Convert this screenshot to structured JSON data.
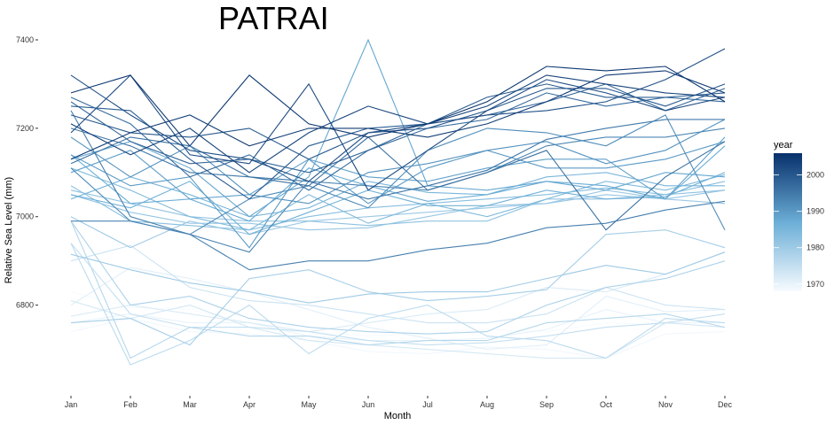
{
  "chart_data": {
    "type": "line",
    "title": "PATRAI",
    "xlabel": "Month",
    "ylabel": "Relative Sea Level (mm)",
    "categories": [
      "Jan",
      "Feb",
      "Mar",
      "Apr",
      "May",
      "Jun",
      "Jul",
      "Aug",
      "Sep",
      "Oct",
      "Nov",
      "Dec"
    ],
    "yticks": [
      6800,
      7000,
      7200,
      7400
    ],
    "ylim": [
      6625,
      7410
    ],
    "grid": false,
    "legend": {
      "title": "year",
      "position": "right",
      "ticks": [
        1970,
        1980,
        1990,
        2000
      ],
      "range": [
        1968,
        2006
      ],
      "color_low": "#f7fbff",
      "color_high": "#08306b"
    },
    "series": [
      {
        "year": 1968,
        "values": [
          6830,
          6795,
          6790,
          6760,
          6740,
          6730,
          6735,
          6745,
          6740,
          6760,
          6755,
          6800
        ]
      },
      {
        "year": 1969,
        "values": [
          6740,
          6770,
          6740,
          6735,
          6720,
          6695,
          6690,
          6705,
          6700,
          6680,
          6735,
          6740
        ]
      },
      {
        "year": 1970,
        "values": [
          6760,
          6780,
          6760,
          6760,
          6730,
          6720,
          6720,
          6725,
          6745,
          6790,
          6760,
          6760
        ]
      },
      {
        "year": 1971,
        "values": [
          6800,
          6885,
          6860,
          6830,
          6790,
          6750,
          6725,
          6700,
          6710,
          6820,
          6785,
          6790
        ]
      },
      {
        "year": 1972,
        "values": [
          6775,
          6800,
          6780,
          6760,
          6740,
          6760,
          6780,
          6790,
          6840,
          6830,
          6870,
          6920
        ]
      },
      {
        "year": 1973,
        "values": [
          6810,
          6770,
          6800,
          6750,
          6720,
          6710,
          6700,
          6690,
          6680,
          6680,
          6760,
          6750
        ]
      },
      {
        "year": 1974,
        "values": [
          6900,
          6935,
          6840,
          6810,
          6800,
          6780,
          6760,
          6760,
          6780,
          6840,
          6800,
          6790
        ]
      },
      {
        "year": 1975,
        "values": [
          6940,
          6780,
          6750,
          6750,
          6740,
          6720,
          6710,
          6715,
          6730,
          6750,
          6760,
          6780
        ]
      },
      {
        "year": 1976,
        "values": [
          6940,
          6665,
          6720,
          6800,
          6690,
          6770,
          6800,
          6730,
          6720,
          6680,
          6770,
          6760
        ]
      },
      {
        "year": 1977,
        "values": [
          6990,
          6680,
          6750,
          6730,
          6730,
          6710,
          6720,
          6720,
          6760,
          6770,
          6780,
          6750
        ]
      },
      {
        "year": 1978,
        "values": [
          6990,
          6800,
          6820,
          6770,
          6750,
          6740,
          6735,
          6740,
          6800,
          6840,
          6860,
          6900
        ]
      },
      {
        "year": 1979,
        "values": [
          6760,
          6770,
          6710,
          6860,
          6880,
          6830,
          6810,
          6820,
          6835,
          6960,
          6970,
          6930
        ]
      },
      {
        "year": 1980,
        "values": [
          6915,
          6880,
          6850,
          6830,
          6805,
          6825,
          6830,
          6830,
          6860,
          6890,
          6870,
          6920
        ]
      },
      {
        "year": 1980.5,
        "values": [
          7000,
          6930,
          6990,
          6960,
          6990,
          7000,
          7010,
          7020,
          7030,
          7060,
          7040,
          7030
        ]
      },
      {
        "year": 1981,
        "values": [
          7050,
          7010,
          6985,
          6985,
          6970,
          6975,
          7000,
          7025,
          7030,
          7050,
          7040,
          7060
        ]
      },
      {
        "year": 1982,
        "values": [
          7060,
          7030,
          7000,
          6990,
          6990,
          6980,
          6990,
          6990,
          7040,
          7040,
          7050,
          7060
        ]
      },
      {
        "year": 1983,
        "values": [
          7070,
          6990,
          6980,
          6970,
          7000,
          7020,
          7030,
          7040,
          7050,
          7065,
          7050,
          7080
        ]
      },
      {
        "year": 1984,
        "values": [
          7110,
          7060,
          7000,
          6970,
          7050,
          6985,
          7030,
          7000,
          7040,
          7080,
          7060,
          7095
        ]
      },
      {
        "year": 1985,
        "values": [
          7040,
          7090,
          7050,
          7000,
          7020,
          7080,
          7055,
          7050,
          7090,
          7100,
          7070,
          7070
        ]
      },
      {
        "year": 1986,
        "values": [
          7050,
          7020,
          7080,
          6960,
          7010,
          7060,
          7025,
          7025,
          7060,
          7040,
          7045,
          7100
        ]
      },
      {
        "year": 1987,
        "values": [
          7140,
          7030,
          7040,
          6990,
          7110,
          7070,
          7035,
          7050,
          7080,
          7070,
          7040,
          7160
        ]
      },
      {
        "year": 1988,
        "values": [
          7130,
          7170,
          7110,
          7000,
          7090,
          7400,
          7070,
          7060,
          7080,
          7060,
          7100,
          7090
        ]
      },
      {
        "year": 1989,
        "values": [
          7100,
          7150,
          7040,
          7050,
          7130,
          7090,
          7080,
          7110,
          7130,
          7130,
          7040,
          7180
        ]
      },
      {
        "year": 1990,
        "values": [
          7140,
          7070,
          7090,
          6930,
          7130,
          7030,
          7110,
          7150,
          7110,
          7110,
          7130,
          7170
        ]
      },
      {
        "year": 1991,
        "values": [
          7180,
          7090,
          7160,
          7050,
          7030,
          7100,
          7120,
          7150,
          7170,
          7120,
          7150,
          7220
        ]
      },
      {
        "year": 1992,
        "values": [
          7110,
          6990,
          6960,
          7040,
          7070,
          7020,
          7150,
          7200,
          7190,
          7160,
          7230,
          6970
        ]
      },
      {
        "year": 1993,
        "values": [
          6990,
          6990,
          6960,
          6920,
          7080,
          7070,
          7060,
          7100,
          7160,
          7180,
          7180,
          7200
        ]
      },
      {
        "year": 1994,
        "values": [
          7240,
          7000,
          6960,
          6880,
          6900,
          6900,
          6925,
          6940,
          6975,
          6985,
          7015,
          7035
        ]
      },
      {
        "year": 1995,
        "values": [
          7200,
          7160,
          7100,
          7090,
          7080,
          7040,
          7070,
          7105,
          7175,
          7200,
          7220,
          7220
        ]
      },
      {
        "year": 1996,
        "values": [
          7120,
          7180,
          7160,
          7090,
          7070,
          7180,
          7060,
          7100,
          7150,
          6970,
          7090,
          7170
        ]
      },
      {
        "year": 1997,
        "values": [
          7270,
          7210,
          7090,
          7140,
          7060,
          7150,
          7200,
          7220,
          7280,
          7250,
          7270,
          7260
        ]
      },
      {
        "year": 1998,
        "values": [
          7260,
          7170,
          7120,
          7130,
          7100,
          7150,
          7210,
          7230,
          7260,
          7300,
          7240,
          7290
        ]
      },
      {
        "year": 1999,
        "values": [
          7250,
          7240,
          7130,
          7040,
          7160,
          7200,
          7210,
          7270,
          7300,
          7270,
          7270,
          7280
        ]
      },
      {
        "year": 2000,
        "values": [
          7230,
          7190,
          7180,
          7200,
          7130,
          7190,
          7200,
          7240,
          7290,
          7290,
          7250,
          7300
        ]
      },
      {
        "year": 2001,
        "values": [
          7320,
          7230,
          7150,
          7130,
          7080,
          7190,
          7210,
          7230,
          7240,
          7260,
          7310,
          7380
        ]
      },
      {
        "year": 2002,
        "values": [
          7190,
          7320,
          7140,
          7120,
          7300,
          7060,
          7150,
          7240,
          7310,
          7280,
          7240,
          7270
        ]
      },
      {
        "year": 2003,
        "values": [
          7210,
          7140,
          7200,
          7100,
          7190,
          7250,
          7210,
          7250,
          7320,
          7300,
          7280,
          7270
        ]
      },
      {
        "year": 2004,
        "values": [
          7130,
          7190,
          7230,
          7160,
          7200,
          7200,
          7180,
          7210,
          7260,
          7320,
          7330,
          7280
        ]
      },
      {
        "year": 2005,
        "values": [
          7280,
          7320,
          7160,
          7320,
          7210,
          7180,
          7210,
          7260,
          7340,
          7330,
          7340,
          7260
        ]
      }
    ]
  }
}
